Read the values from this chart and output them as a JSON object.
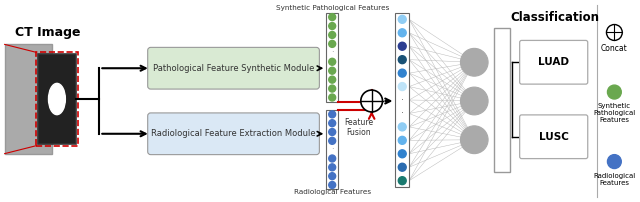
{
  "bg_color": "#ffffff",
  "fig_width": 6.4,
  "fig_height": 2.02,
  "dpi": 100,
  "ct_image_label": "CT Image",
  "module1_label": "Pathological Feature Synthetic Module",
  "module1_color": "#d9ead3",
  "module2_label": "Radiological Feature Extraction Module",
  "module2_color": "#dae8f5",
  "synth_features_label": "Synthetic Pathological Features",
  "radio_features_label": "Radiological Features",
  "fusion_label": "Feature\nFusion",
  "classification_label": "Classification",
  "luad_label": "LUAD",
  "lusc_label": "LUSC",
  "concat_label": "Concat",
  "synth_legend_label": "Synthetic\nPathological\nFeatures",
  "radio_legend_label": "Radiological\nFeatures",
  "green_dot_color": "#6aa84f",
  "blue_dot_color": "#4472c4",
  "red_color": "#cc0000",
  "dark_color": "#333333",
  "gray_color": "#888888",
  "light_gray": "#bbbbbb",
  "dark_gray": "#555555"
}
